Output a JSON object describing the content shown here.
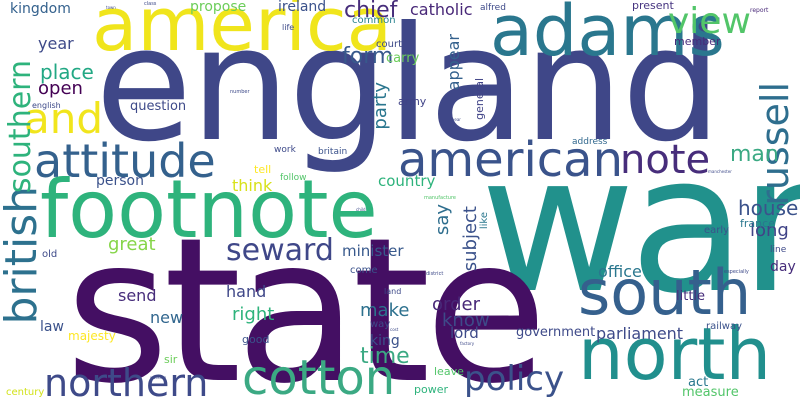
{
  "words": {
    "england": "england",
    "war": "war",
    "state": "state",
    "america": "america",
    "adams": "adams",
    "footnote": "footnote",
    "south": "south",
    "north": "north",
    "american": "american",
    "attitude": "attitude",
    "and": "and",
    "cotton": "cotton",
    "northern": "northern",
    "british": "british",
    "note": "note",
    "policy": "policy",
    "view": "view",
    "russell": "russell",
    "seward": "seward",
    "southern": "southern",
    "house": "house",
    "man": "man",
    "form": "form",
    "chief": "chief",
    "catholic": "catholic",
    "ireland": "ireland",
    "kingdom": "kingdom",
    "propose": "propose",
    "common": "common",
    "alfred": "alfred",
    "present": "present",
    "report": "report",
    "year": "year",
    "place": "place",
    "open": "open",
    "question": "question",
    "army": "army",
    "carry": "carry",
    "appear": "appear",
    "general": "general",
    "court": "court",
    "member": "member",
    "party": "party",
    "subject": "subject",
    "say": "say",
    "country": "country",
    "person": "person",
    "think": "think",
    "great": "great",
    "minister": "minister",
    "long": "long",
    "office": "office",
    "send": "send",
    "hand": "hand",
    "new": "new",
    "right": "right",
    "make": "make",
    "order": "order",
    "know": "know",
    "lord": "lord",
    "time": "time",
    "king": "king",
    "parliament": "parliament",
    "government": "government",
    "law": "law",
    "majesty": "majesty",
    "good": "good",
    "sir": "sir",
    "act": "act",
    "measure": "measure",
    "leave": "leave",
    "power": "power",
    "century": "century",
    "little": "little",
    "day": "day",
    "france": "france",
    "railway": "railway",
    "early": "early",
    "like": "like",
    "tell": "tell",
    "follow": "follow",
    "work": "work",
    "britain": "britain",
    "address": "address",
    "come": "come",
    "land": "land",
    "way": "way",
    "old": "old",
    "english": "english",
    "life": "life",
    "number": "number",
    "class": "class",
    "town": "town",
    "manufacture": "manufacture",
    "child": "child",
    "district": "district",
    "line": "line",
    "especially": "especially",
    "manchester": "manchester",
    "worker": "worker",
    "working": "working",
    "factory": "factory",
    "cost": "cost",
    "year_small": "year"
  }
}
